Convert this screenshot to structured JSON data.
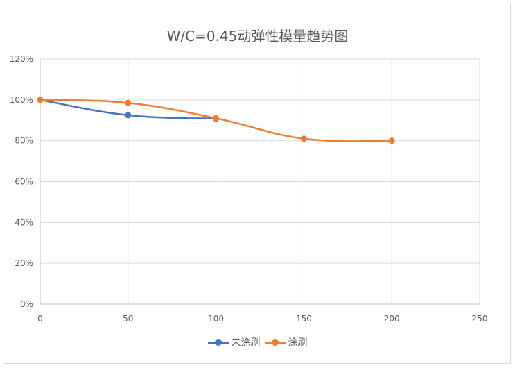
{
  "chart_data": {
    "type": "line",
    "title": "W/C=0.45动弹性模量趋势图",
    "xlim": [
      0,
      250
    ],
    "ylim": [
      0,
      1.2
    ],
    "x_ticks": [
      0,
      50,
      100,
      150,
      200,
      250
    ],
    "x_tick_labels": [
      "0",
      "50",
      "100",
      "150",
      "200",
      "250"
    ],
    "y_ticks": [
      0,
      0.2,
      0.4,
      0.6,
      0.8,
      1.0,
      1.2
    ],
    "y_tick_labels": [
      "0%",
      "20%",
      "40%",
      "60%",
      "80%",
      "100%",
      "120%"
    ],
    "grid": true,
    "smooth": true,
    "legend_position": "bottom",
    "series": [
      {
        "name": "未涂刷",
        "color": "#4472c4",
        "x": [
          0,
          50,
          100
        ],
        "values": [
          1.0,
          0.925,
          0.908
        ]
      },
      {
        "name": "涂刷",
        "color": "#ed7d31",
        "x": [
          0,
          50,
          100,
          150,
          200
        ],
        "values": [
          1.0,
          0.985,
          0.91,
          0.81,
          0.8
        ]
      }
    ]
  }
}
